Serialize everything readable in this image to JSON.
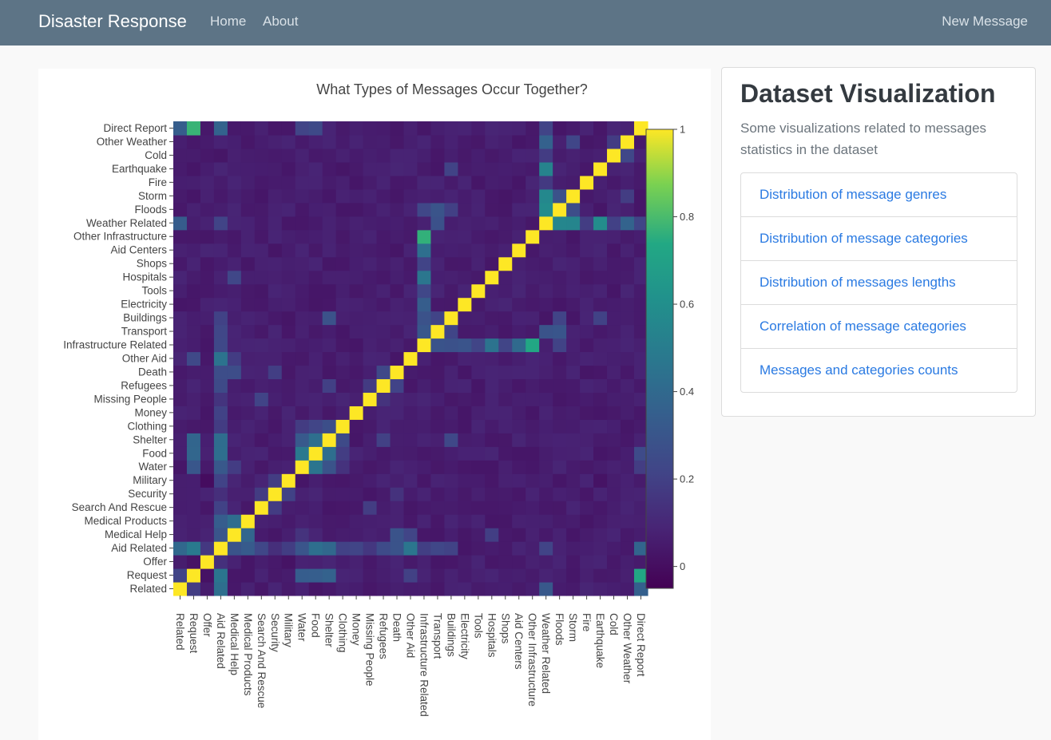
{
  "navbar": {
    "brand": "Disaster Response",
    "home": "Home",
    "about": "About",
    "new_message": "New Message"
  },
  "sidebar": {
    "title": "Dataset Visualization",
    "subtitle": "Some visualizations related to messages statistics in the dataset",
    "links": [
      "Distribution of message genres",
      "Distribution of message categories",
      "Distribution of messages lengths",
      "Correlation of message categories",
      "Messages and categories counts"
    ]
  },
  "colors": {
    "navbar_bg": "#5d7486",
    "link": "#2a7ae2",
    "viridis_low": "#440154",
    "viridis_high": "#fde725"
  },
  "chart_data": {
    "type": "heatmap",
    "title": "What Types of Messages Occur Together?",
    "categories": [
      "Related",
      "Request",
      "Offer",
      "Aid Related",
      "Medical Help",
      "Medical Products",
      "Search And Rescue",
      "Security",
      "Military",
      "Water",
      "Food",
      "Shelter",
      "Clothing",
      "Money",
      "Missing People",
      "Refugees",
      "Death",
      "Other Aid",
      "Infrastructure Related",
      "Transport",
      "Buildings",
      "Electricity",
      "Tools",
      "Hospitals",
      "Shops",
      "Aid Centers",
      "Other Infrastructure",
      "Weather Related",
      "Floods",
      "Storm",
      "Fire",
      "Earthquake",
      "Cold",
      "Other Weather",
      "Direct Report"
    ],
    "zmin": -0.05,
    "zmax": 1,
    "colorbar": {
      "ticks": [
        "1",
        "0.8",
        "0.6",
        "0.4",
        "0.2",
        "0"
      ]
    },
    "baseline": 0.05,
    "cells": [
      [
        "Related",
        "Request",
        0.2
      ],
      [
        "Related",
        "Aid Related",
        0.4
      ],
      [
        "Related",
        "Weather Related",
        0.3
      ],
      [
        "Related",
        "Direct Report",
        0.35
      ],
      [
        "Request",
        "Aid Related",
        0.45
      ],
      [
        "Request",
        "Water",
        0.3
      ],
      [
        "Request",
        "Food",
        0.35
      ],
      [
        "Request",
        "Shelter",
        0.35
      ],
      [
        "Request",
        "Other Aid",
        0.2
      ],
      [
        "Request",
        "Direct Report",
        0.75
      ],
      [
        "Request",
        "Offer",
        0.02
      ],
      [
        "Aid Related",
        "Medical Help",
        0.3
      ],
      [
        "Aid Related",
        "Medical Products",
        0.3
      ],
      [
        "Aid Related",
        "Search And Rescue",
        0.2
      ],
      [
        "Aid Related",
        "Security",
        0.15
      ],
      [
        "Aid Related",
        "Military",
        0.2
      ],
      [
        "Aid Related",
        "Water",
        0.3
      ],
      [
        "Aid Related",
        "Food",
        0.4
      ],
      [
        "Aid Related",
        "Shelter",
        0.4
      ],
      [
        "Aid Related",
        "Clothing",
        0.2
      ],
      [
        "Aid Related",
        "Money",
        0.2
      ],
      [
        "Aid Related",
        "Missing People",
        0.15
      ],
      [
        "Aid Related",
        "Refugees",
        0.25
      ],
      [
        "Aid Related",
        "Death",
        0.25
      ],
      [
        "Aid Related",
        "Other Aid",
        0.45
      ],
      [
        "Aid Related",
        "Infrastructure Related",
        0.2
      ],
      [
        "Aid Related",
        "Transport",
        0.2
      ],
      [
        "Aid Related",
        "Buildings",
        0.2
      ],
      [
        "Aid Related",
        "Weather Related",
        0.2
      ],
      [
        "Aid Related",
        "Direct Report",
        0.35
      ],
      [
        "Medical Help",
        "Medical Products",
        0.4
      ],
      [
        "Medical Help",
        "Hospitals",
        0.2
      ],
      [
        "Medical Help",
        "Death",
        0.25
      ],
      [
        "Medical Help",
        "Other Aid",
        0.2
      ],
      [
        "Medical Help",
        "Water",
        0.15
      ],
      [
        "Search And Rescue",
        "Missing People",
        0.2
      ],
      [
        "Search And Rescue",
        "Security",
        0.15
      ],
      [
        "Water",
        "Food",
        0.45
      ],
      [
        "Water",
        "Shelter",
        0.3
      ],
      [
        "Water",
        "Clothing",
        0.15
      ],
      [
        "Water",
        "Direct Report",
        0.2
      ],
      [
        "Food",
        "Shelter",
        0.4
      ],
      [
        "Food",
        "Clothing",
        0.2
      ],
      [
        "Food",
        "Direct Report",
        0.25
      ],
      [
        "Food",
        "Cold",
        0.02
      ],
      [
        "Shelter",
        "Clothing",
        0.25
      ],
      [
        "Shelter",
        "Buildings",
        0.25
      ],
      [
        "Shelter",
        "Refugees",
        0.2
      ],
      [
        "Infrastructure Related",
        "Other Infrastructure",
        0.75
      ],
      [
        "Infrastructure Related",
        "Transport",
        0.3
      ],
      [
        "Infrastructure Related",
        "Buildings",
        0.25
      ],
      [
        "Infrastructure Related",
        "Hospitals",
        0.45
      ],
      [
        "Infrastructure Related",
        "Shops",
        0.2
      ],
      [
        "Infrastructure Related",
        "Aid Centers",
        0.4
      ],
      [
        "Infrastructure Related",
        "Electricity",
        0.3
      ],
      [
        "Infrastructure Related",
        "Tools",
        0.2
      ],
      [
        "Infrastructure Related",
        "Floods",
        0.2
      ],
      [
        "Transport",
        "Floods",
        0.3
      ],
      [
        "Transport",
        "Weather Related",
        0.25
      ],
      [
        "Transport",
        "Buildings",
        0.2
      ],
      [
        "Buildings",
        "Earthquake",
        0.2
      ],
      [
        "Buildings",
        "Floods",
        0.2
      ],
      [
        "Weather Related",
        "Floods",
        0.55
      ],
      [
        "Weather Related",
        "Storm",
        0.55
      ],
      [
        "Weather Related",
        "Earthquake",
        0.55
      ],
      [
        "Weather Related",
        "Other Weather",
        0.35
      ],
      [
        "Weather Related",
        "Cold",
        0.2
      ],
      [
        "Weather Related",
        "Fire",
        0.15
      ],
      [
        "Weather Related",
        "Direct Report",
        0.2
      ],
      [
        "Floods",
        "Storm",
        0.25
      ],
      [
        "Storm",
        "Other Weather",
        0.2
      ],
      [
        "Cold",
        "Other Weather",
        0.2
      ],
      [
        "Military",
        "Security",
        0.2
      ],
      [
        "Military",
        "Direct Report",
        0.02
      ],
      [
        "Security",
        "Death",
        0.15
      ],
      [
        "Missing People",
        "Refugees",
        0.15
      ],
      [
        "Death",
        "Refugees",
        0.2
      ],
      [
        "Offer",
        "Aid Related",
        0.15
      ],
      [
        "Offer",
        "Direct Report",
        0.02
      ],
      [
        "Offer",
        "Military",
        0.01
      ],
      [
        "Earthquake",
        "Direct Report",
        0.02
      ],
      [
        "Earthquake",
        "Military",
        0.01
      ]
    ]
  }
}
